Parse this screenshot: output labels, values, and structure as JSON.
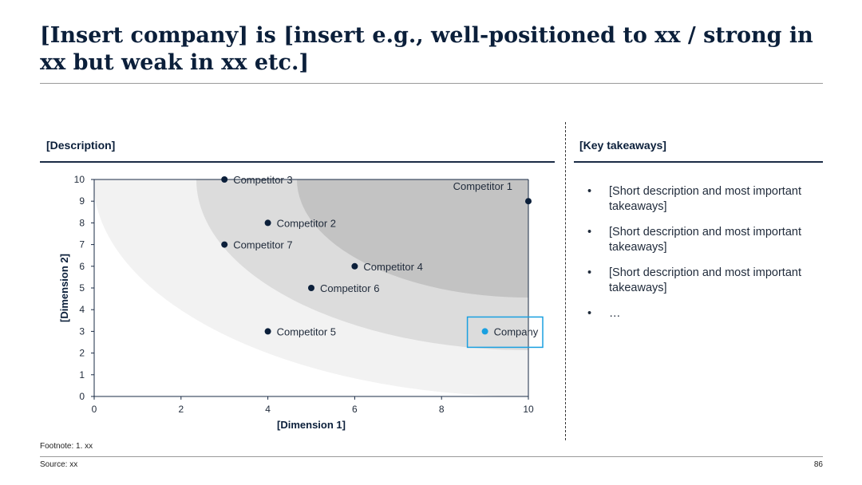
{
  "slide": {
    "title": "[Insert company] is [insert e.g., well-positioned to xx / strong in xx but weak in xx etc.]",
    "left_heading": "[Description]",
    "right_heading": "[Key takeaways]",
    "takeaways": [
      "[Short description and most important takeaways]",
      "[Short description and most important takeaways]",
      "[Short description and most important takeaways]",
      "…"
    ],
    "bullet_char": "•",
    "footnote": "Footnote: 1. xx",
    "source": "Source: xx",
    "page_number": "86"
  },
  "colors": {
    "navy": "#0b1f3a",
    "zone_light": "#f2f2f2",
    "zone_mid": "#dcdcdc",
    "zone_dark": "#c3c3c3",
    "highlight": "#1aa0e0"
  },
  "chart_data": {
    "type": "scatter",
    "xlabel": "[Dimension 1]",
    "ylabel": "[Dimension 2]",
    "xlim": [
      0,
      10
    ],
    "ylim": [
      0,
      10
    ],
    "x_ticks": [
      0,
      2,
      4,
      6,
      8,
      10
    ],
    "y_ticks": [
      0,
      1,
      2,
      3,
      4,
      5,
      6,
      7,
      8,
      9,
      10
    ],
    "grid": false,
    "background_zones": [
      {
        "level": "outer",
        "color": "#f2f2f2"
      },
      {
        "level": "middle",
        "color": "#dcdcdc"
      },
      {
        "level": "inner",
        "color": "#c3c3c3"
      }
    ],
    "points": [
      {
        "label": "Competitor 1",
        "x": 10,
        "y": 9,
        "highlight": false
      },
      {
        "label": "Competitor 2",
        "x": 4,
        "y": 8,
        "highlight": false
      },
      {
        "label": "Competitor 3",
        "x": 3,
        "y": 10,
        "highlight": false
      },
      {
        "label": "Competitor 4",
        "x": 6,
        "y": 6,
        "highlight": false
      },
      {
        "label": "Competitor 5",
        "x": 4,
        "y": 3,
        "highlight": false
      },
      {
        "label": "Competitor 6",
        "x": 5,
        "y": 5,
        "highlight": false
      },
      {
        "label": "Competitor 7",
        "x": 3,
        "y": 7,
        "highlight": false
      },
      {
        "label": "Company",
        "x": 9,
        "y": 3,
        "highlight": true
      }
    ]
  }
}
